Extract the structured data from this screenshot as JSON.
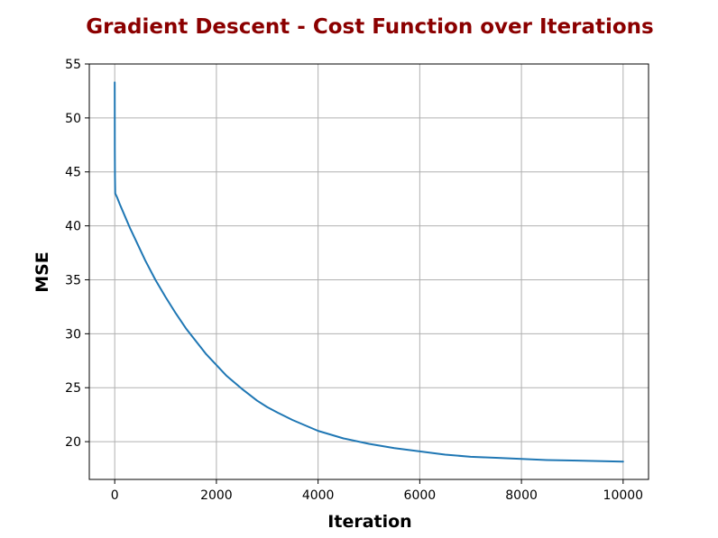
{
  "chart_data": {
    "type": "line",
    "title": "Gradient Descent - Cost Function over Iterations",
    "xlabel": "Iteration",
    "ylabel": "MSE",
    "xlim": [
      -500,
      10500
    ],
    "ylim": [
      16.5,
      55
    ],
    "xticks": [
      0,
      2000,
      4000,
      6000,
      8000,
      10000
    ],
    "yticks": [
      20,
      25,
      30,
      35,
      40,
      45,
      50,
      55
    ],
    "grid": true,
    "legend": "none",
    "series": [
      {
        "color": "#1f77b4",
        "x": [
          0,
          1,
          2,
          5,
          10,
          50,
          100,
          200,
          300,
          400,
          500,
          600,
          800,
          1000,
          1200,
          1400,
          1600,
          1800,
          2000,
          2200,
          2500,
          2800,
          3000,
          3200,
          3500,
          4000,
          4500,
          5000,
          5500,
          6000,
          6500,
          7000,
          7500,
          8000,
          8500,
          9000,
          9500,
          10000
        ],
        "y": [
          53.3,
          50.0,
          47.0,
          44.5,
          43.0,
          42.6,
          42.0,
          40.9,
          39.8,
          38.8,
          37.8,
          36.8,
          35.0,
          33.4,
          31.9,
          30.5,
          29.3,
          28.1,
          27.1,
          26.1,
          24.9,
          23.8,
          23.2,
          22.7,
          22.0,
          21.0,
          20.3,
          19.8,
          19.4,
          19.1,
          18.8,
          18.6,
          18.5,
          18.4,
          18.3,
          18.25,
          18.2,
          18.15
        ]
      }
    ],
    "colors": {
      "title": "#8b0000",
      "grid": "#b0b0b0",
      "axes": "#000000"
    }
  }
}
